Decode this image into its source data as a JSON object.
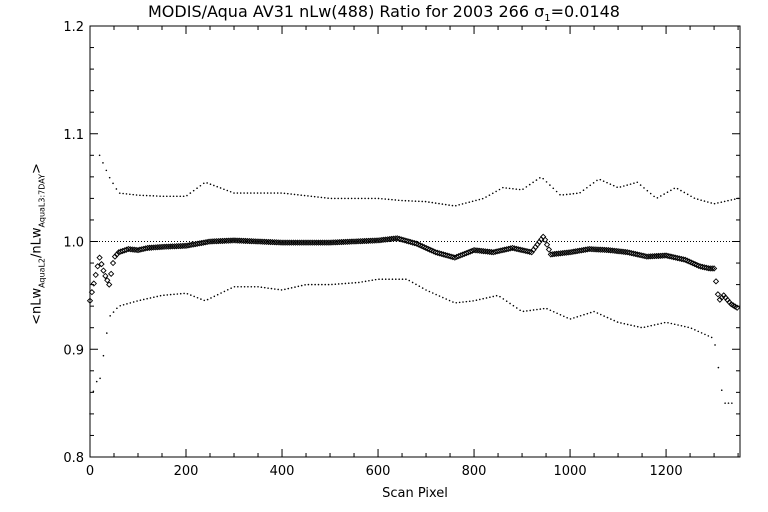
{
  "title": {
    "prefix": "MODIS/Aqua AV31 nLw(488) Ratio for 2003 266 σ",
    "sigma_sub": "1",
    "suffix": "=0.0148"
  },
  "ylabel": {
    "open": "<nLw",
    "sub1": "AquaL2",
    "mid": "/nLw",
    "sub2": "AquaL3:7DAY",
    "close": ">"
  },
  "chart_data": {
    "type": "scatter",
    "title": "MODIS/Aqua AV31 nLw(488) Ratio for 2003 266 σ1=0.0148",
    "xlabel": "Scan Pixel",
    "ylabel": "<nLw AquaL2 / nLw AquaL3:7DAY>",
    "xlim": [
      0,
      1354
    ],
    "ylim": [
      0.8,
      1.2
    ],
    "xticks": [
      0,
      200,
      400,
      600,
      800,
      1000,
      1200
    ],
    "xtick_labels": [
      "0",
      "200",
      "400",
      "600",
      "800",
      "1000",
      "1200"
    ],
    "yticks": [
      0.8,
      0.9,
      1.0,
      1.1,
      1.2
    ],
    "ytick_labels": [
      "0.8",
      "0.9",
      "1.0",
      "1.1",
      "1.2"
    ],
    "reference_line": 1.0,
    "grid": false,
    "series": [
      {
        "style": "diamond-markers",
        "x": [
          0,
          10,
          20,
          30,
          40,
          50,
          60,
          80,
          100,
          120,
          150,
          200,
          250,
          300,
          350,
          400,
          450,
          500,
          550,
          600,
          640,
          680,
          720,
          760,
          800,
          840,
          880,
          920,
          945,
          960,
          1000,
          1040,
          1080,
          1120,
          1160,
          1200,
          1240,
          1270,
          1290,
          1300,
          1310,
          1320,
          1335,
          1350
        ],
        "y": [
          0.945,
          0.965,
          0.985,
          0.97,
          0.96,
          0.985,
          0.99,
          0.993,
          0.992,
          0.994,
          0.995,
          0.996,
          1.0,
          1.001,
          1.0,
          0.999,
          0.999,
          0.999,
          1.0,
          1.001,
          1.003,
          0.998,
          0.99,
          0.985,
          0.992,
          0.99,
          0.994,
          0.99,
          1.005,
          0.988,
          0.99,
          0.993,
          0.992,
          0.99,
          0.986,
          0.987,
          0.983,
          0.977,
          0.975,
          0.975,
          0.945,
          0.95,
          0.942,
          0.938
        ]
      },
      {
        "style": "upper-dotted",
        "x": [
          20,
          40,
          60,
          100,
          150,
          200,
          240,
          300,
          400,
          500,
          600,
          650,
          700,
          760,
          820,
          860,
          900,
          940,
          980,
          1020,
          1060,
          1100,
          1140,
          1180,
          1220,
          1260,
          1300,
          1330,
          1350
        ],
        "y": [
          1.08,
          1.06,
          1.045,
          1.043,
          1.042,
          1.042,
          1.055,
          1.045,
          1.045,
          1.04,
          1.04,
          1.038,
          1.037,
          1.033,
          1.04,
          1.05,
          1.048,
          1.06,
          1.043,
          1.045,
          1.058,
          1.05,
          1.055,
          1.04,
          1.05,
          1.04,
          1.035,
          1.038,
          1.04
        ]
      },
      {
        "style": "lower-dotted",
        "x": [
          0,
          10,
          20,
          40,
          60,
          100,
          150,
          200,
          240,
          300,
          350,
          400,
          450,
          500,
          560,
          600,
          660,
          700,
          760,
          800,
          850,
          900,
          950,
          1000,
          1050,
          1100,
          1150,
          1200,
          1250,
          1300,
          1320,
          1340
        ],
        "y": [
          0.84,
          0.87,
          0.87,
          0.93,
          0.94,
          0.945,
          0.95,
          0.952,
          0.945,
          0.958,
          0.958,
          0.955,
          0.96,
          0.96,
          0.962,
          0.965,
          0.965,
          0.955,
          0.943,
          0.945,
          0.95,
          0.935,
          0.938,
          0.928,
          0.935,
          0.925,
          0.92,
          0.925,
          0.92,
          0.91,
          0.85,
          0.85
        ]
      }
    ]
  }
}
